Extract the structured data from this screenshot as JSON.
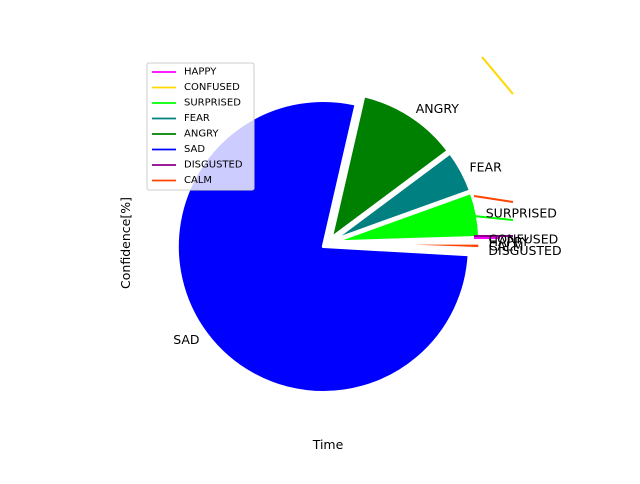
{
  "chart_data": {
    "type": "pie",
    "xlabel": "Time",
    "ylabel": "Confidence[%]",
    "legend_position": "top-left",
    "slices": [
      {
        "label": "HAPPY",
        "value": 0.3,
        "color": "#ff00ff"
      },
      {
        "label": "CONFUSED",
        "value": 0.2,
        "color": "#ffd700"
      },
      {
        "label": "SURPRISED",
        "value": 5.0,
        "color": "#00ff00"
      },
      {
        "label": "FEAR",
        "value": 4.7,
        "color": "#008080"
      },
      {
        "label": "ANGRY",
        "value": 11.2,
        "color": "#008000"
      },
      {
        "label": "SAD",
        "value": 77.7,
        "color": "#0000ff"
      },
      {
        "label": "DISGUSTED",
        "value": 0.3,
        "color": "#8b008b"
      },
      {
        "label": "CALM",
        "value": 0.6,
        "color": "#ff4500"
      }
    ]
  }
}
